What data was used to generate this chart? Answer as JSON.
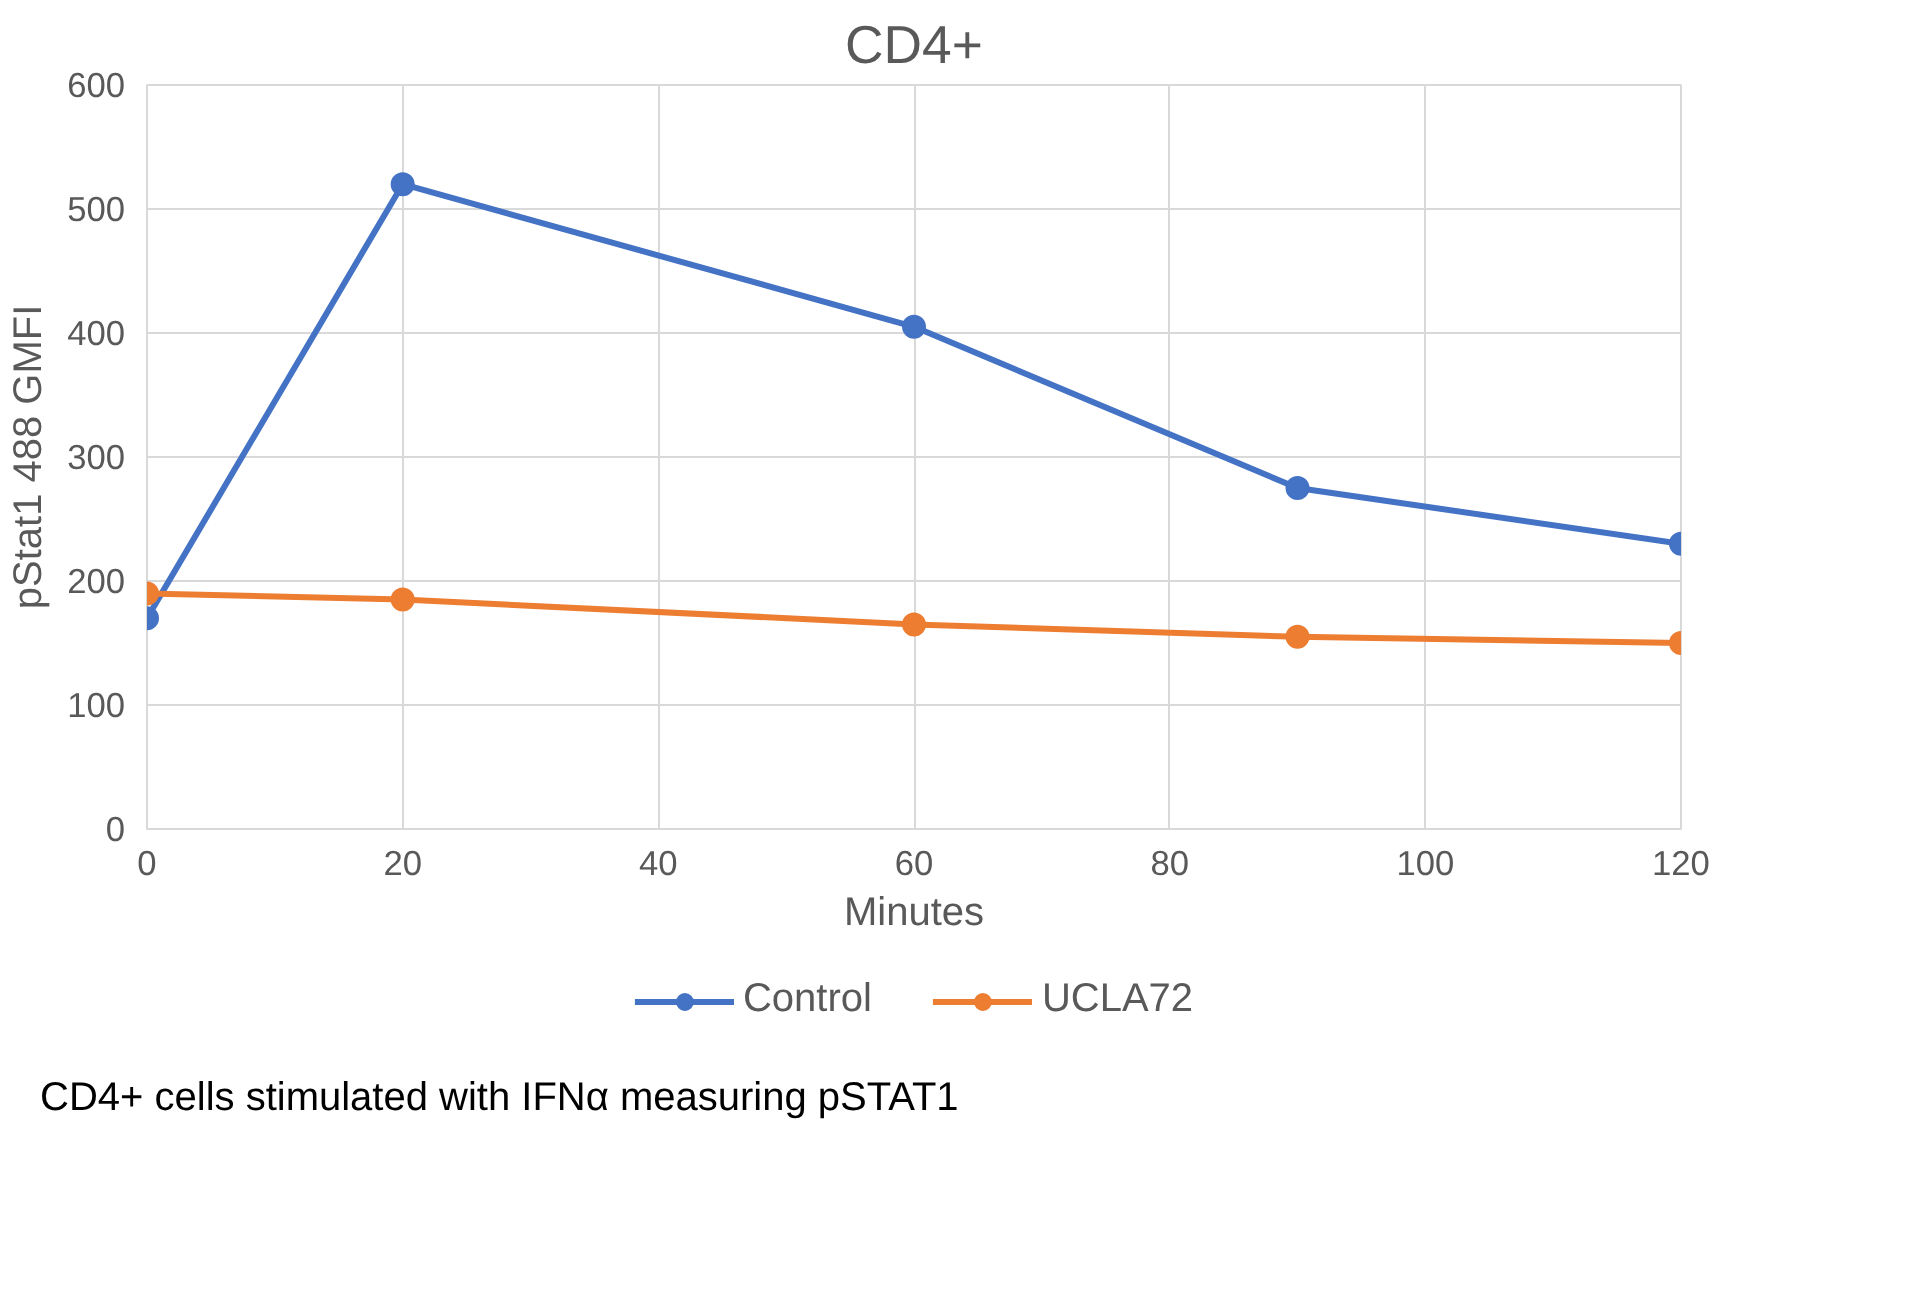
{
  "chart_data": {
    "type": "line",
    "title": "CD4+",
    "xlabel": "Minutes",
    "ylabel": "pStat1 488 GMFI",
    "x": [
      0,
      20,
      60,
      90,
      120
    ],
    "series": [
      {
        "name": "Control",
        "color": "#4472c4",
        "values": [
          170,
          520,
          405,
          275,
          230
        ]
      },
      {
        "name": "UCLA72",
        "color": "#ed7d31",
        "values": [
          190,
          185,
          165,
          155,
          150
        ]
      }
    ],
    "xlim": [
      0,
      120
    ],
    "xticks": [
      0,
      20,
      40,
      60,
      80,
      100,
      120
    ],
    "ylim": [
      0,
      600
    ],
    "yticks": [
      0,
      100,
      200,
      300,
      400,
      500,
      600
    ],
    "grid": true,
    "legend": "bottom",
    "marker": "circle",
    "line_style": "solid",
    "annotations": [
      "CD4+ cells stimulated with IFNα measuring pSTAT1"
    ]
  }
}
